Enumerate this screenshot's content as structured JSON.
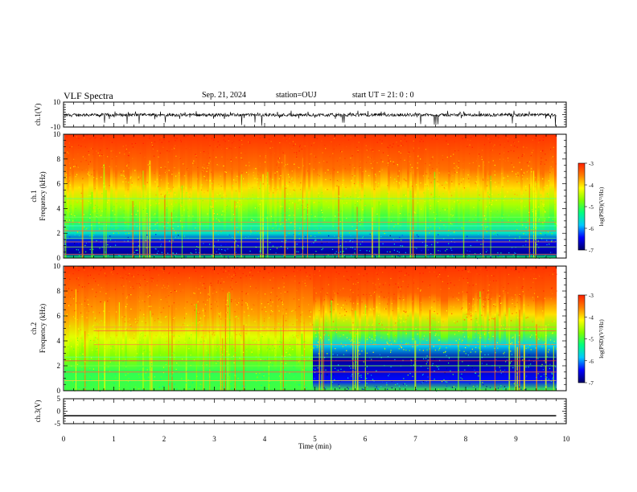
{
  "header": {
    "title": "VLF Spectra",
    "date": "Sep. 21, 2024",
    "station": "station=OUJ",
    "start": "start UT =  21: 0  : 0"
  },
  "chart_data": [
    {
      "type": "line",
      "panel": "ch.1 waveform",
      "ylabel": "ch.1(V)",
      "ylim": [
        -10,
        10
      ],
      "yticks": [
        "10",
        "-10"
      ],
      "xlim": [
        0,
        10
      ],
      "series": [
        {
          "values_description_mean": 0,
          "approx_range": [
            -4,
            3
          ]
        }
      ]
    },
    {
      "type": "heatmap",
      "panel": "ch.1 spectrogram",
      "ylabel": "ch.1\nFrequency (kHz)",
      "ylim": [
        0,
        10
      ],
      "yticks": [
        "0",
        "2",
        "4",
        "6",
        "8",
        "10"
      ],
      "xlim": [
        0,
        10
      ],
      "data_end_min": 9.8,
      "colorbar": {
        "label": "log(PSD)(V²/Hz)",
        "range": [
          -7,
          -3
        ],
        "ticks": [
          "-3",
          "-4",
          "-5",
          "-6",
          "-7"
        ]
      }
    },
    {
      "type": "heatmap",
      "panel": "ch.2 spectrogram",
      "ylabel": "ch.2\nFrequency (kHz)",
      "ylim": [
        0,
        10
      ],
      "yticks": [
        "0",
        "2",
        "4",
        "6",
        "8",
        "10"
      ],
      "xlim": [
        0,
        10
      ],
      "data_end_min": 9.8,
      "colorbar": {
        "label": "log(PSD)(V²/Hz)",
        "range": [
          -7,
          -3
        ],
        "ticks": [
          "-3",
          "-4",
          "-5",
          "-6",
          "-7"
        ]
      }
    },
    {
      "type": "line",
      "panel": "ch.3 waveform",
      "ylabel": "ch.3(V)",
      "ylim": [
        -5,
        5
      ],
      "yticks": [
        "5",
        "0",
        "-5"
      ],
      "xlim": [
        0,
        10
      ],
      "series": [
        {
          "constant": -1.8
        }
      ]
    }
  ],
  "xaxis": {
    "label": "Time (min)",
    "ticks": [
      "0",
      "1",
      "2",
      "3",
      "4",
      "5",
      "6",
      "7",
      "8",
      "9",
      "10"
    ]
  },
  "colors": {
    "colormap": [
      "#000066",
      "#0000ff",
      "#00c8ff",
      "#00ff80",
      "#80ff00",
      "#ffff00",
      "#ff8000",
      "#ff2000"
    ]
  }
}
